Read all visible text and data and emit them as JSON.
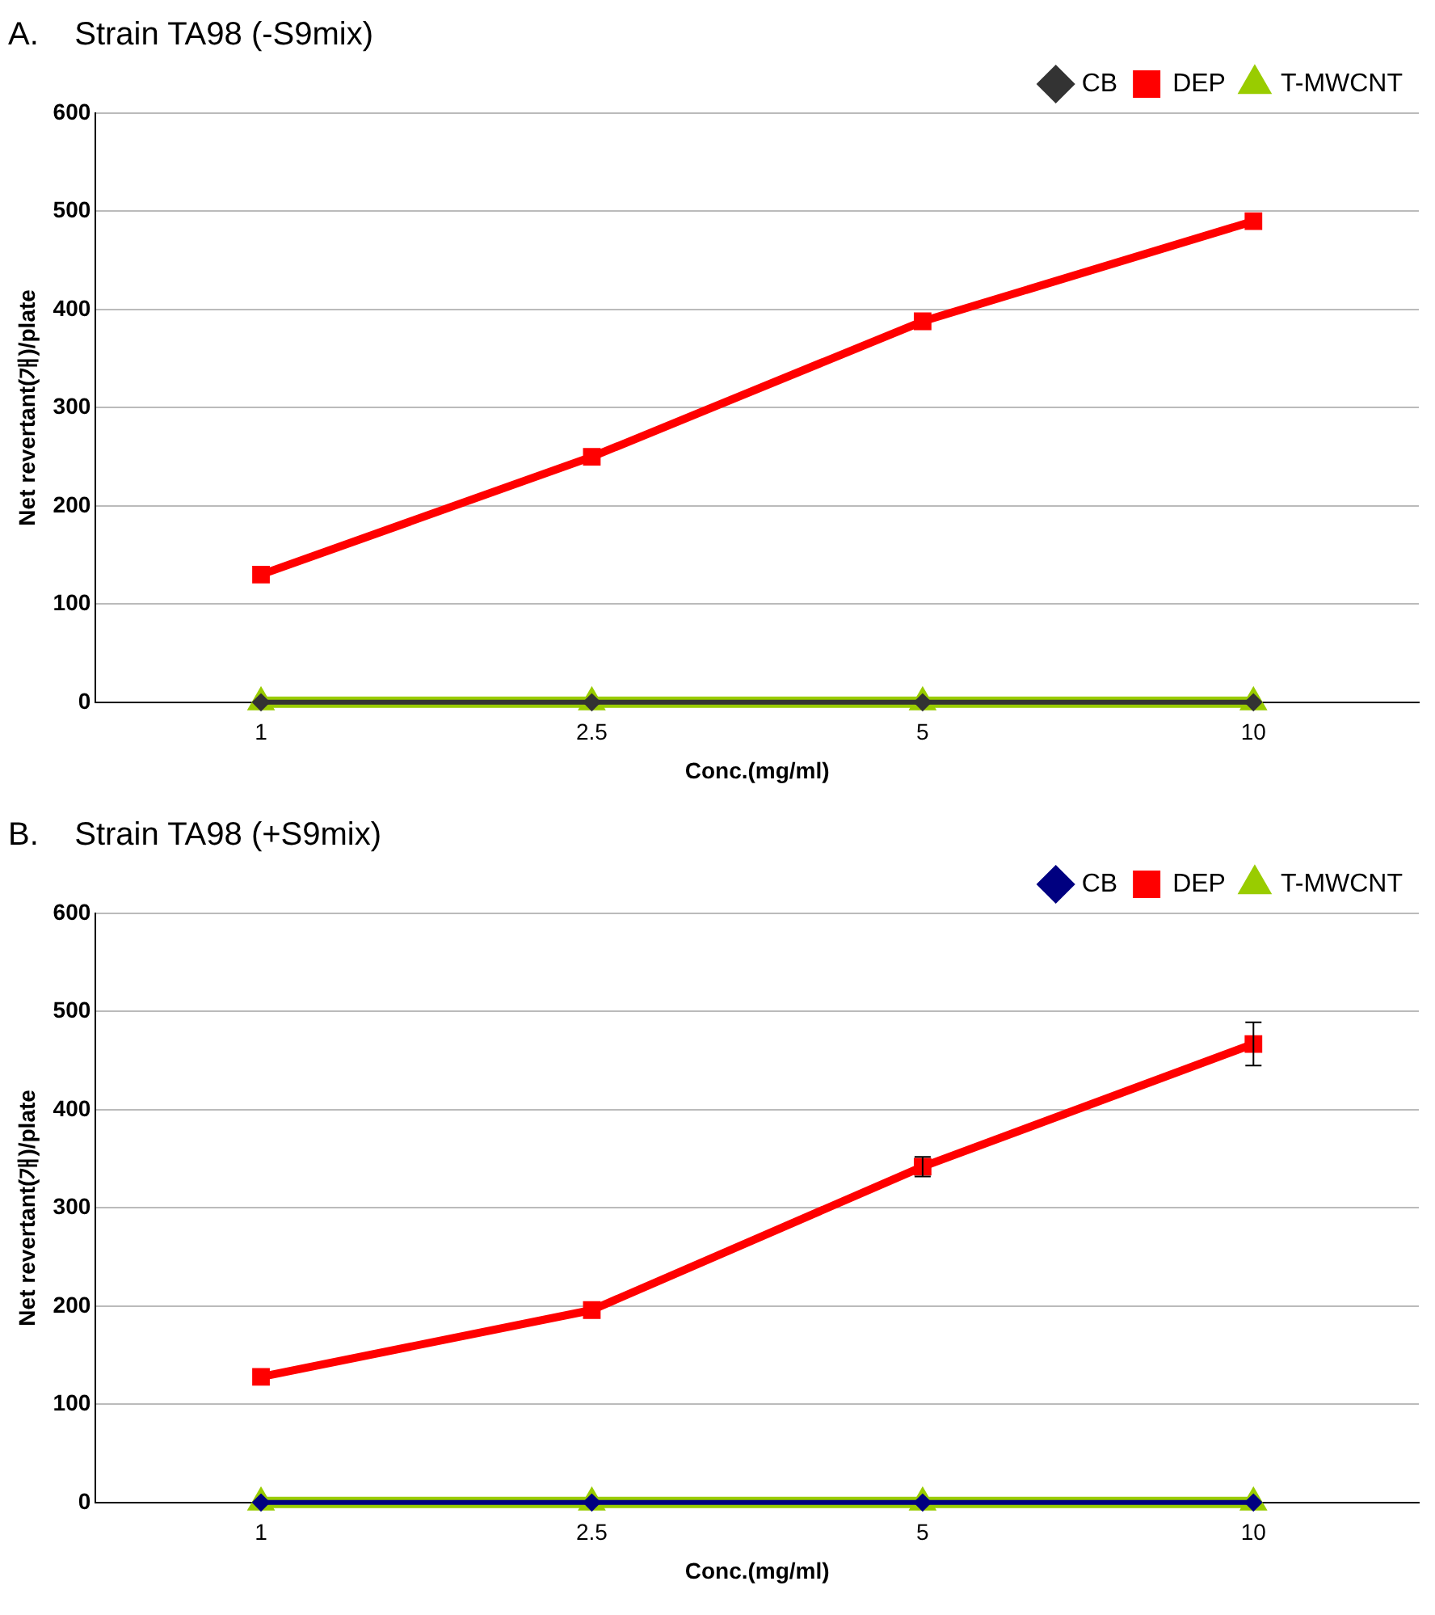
{
  "chart_data": [
    {
      "type": "line",
      "title": "A.    Strain TA98 (-S9mix)",
      "xlabel": "Conc.(mg/ml)",
      "ylabel": "Net revertant(개)/plate",
      "categories": [
        "1",
        "2.5",
        "5",
        "10"
      ],
      "ylim": [
        0,
        600
      ],
      "yticks": [
        0,
        100,
        200,
        300,
        400,
        500,
        600
      ],
      "grid": "y",
      "legend": "top right",
      "series": [
        {
          "name": "CB",
          "color": "#333333",
          "marker": "diamond",
          "values": [
            0,
            0,
            0,
            0
          ]
        },
        {
          "name": "DEP",
          "color": "#ff0000",
          "marker": "square",
          "values": [
            130,
            250,
            388,
            490
          ]
        },
        {
          "name": "T-MWCNT",
          "color": "#99cc00",
          "marker": "triangle",
          "values": [
            0,
            0,
            0,
            0
          ]
        }
      ]
    },
    {
      "type": "line",
      "title": "B.    Strain TA98 (+S9mix)",
      "xlabel": "Conc.(mg/ml)",
      "ylabel": "Net revertant(개)/plate",
      "categories": [
        "1",
        "2.5",
        "5",
        "10"
      ],
      "ylim": [
        0,
        600
      ],
      "yticks": [
        0,
        100,
        200,
        300,
        400,
        500,
        600
      ],
      "grid": "y",
      "legend": "top right",
      "series": [
        {
          "name": "CB",
          "color": "#000080",
          "marker": "diamond",
          "values": [
            0,
            0,
            0,
            0
          ]
        },
        {
          "name": "DEP",
          "color": "#ff0000",
          "marker": "square",
          "values": [
            128,
            196,
            342,
            467
          ],
          "errors": [
            null,
            null,
            10,
            22
          ]
        },
        {
          "name": "T-MWCNT",
          "color": "#99cc00",
          "marker": "triangle",
          "values": [
            0,
            0,
            0,
            0
          ]
        }
      ]
    }
  ]
}
